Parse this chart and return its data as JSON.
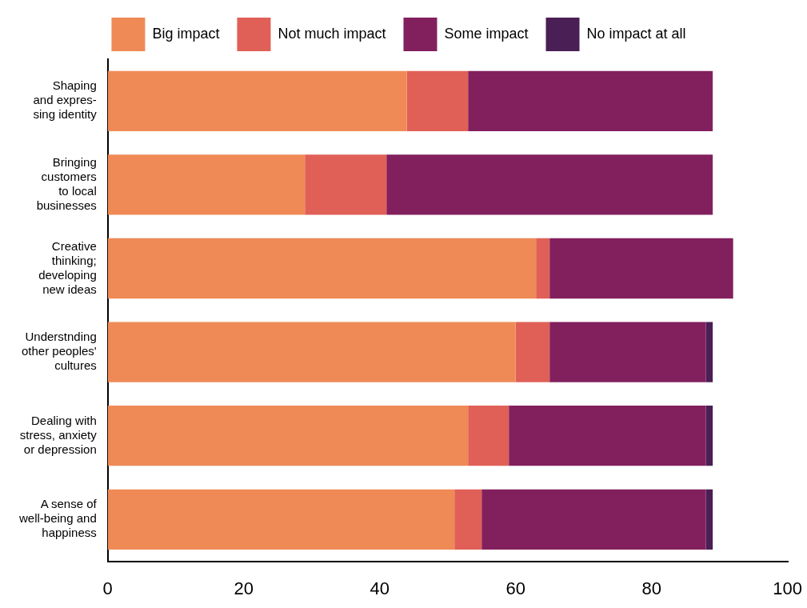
{
  "chart_data": {
    "type": "bar",
    "orientation": "horizontal",
    "stacked": true,
    "legend": "top",
    "grid": false,
    "categories": [
      "Shaping\nand expres-\nsing identity",
      "Bringing\ncustomers\nto local\nbusinesses",
      "Creative\nthinking;\ndeveloping\nnew ideas",
      "Understnding\nother peoples'\ncultures",
      "Dealing with\nstress, anxiety\nor depression",
      "A sense of\nwell-being and\nhappiness"
    ],
    "series": [
      {
        "name": "Big impact",
        "color": "#ef8a56",
        "values": [
          44,
          29,
          63,
          60,
          53,
          51
        ]
      },
      {
        "name": "Not much impact",
        "color": "#e06057",
        "values": [
          9,
          12,
          2,
          5,
          6,
          4
        ]
      },
      {
        "name": "Some impact",
        "color": "#82205e",
        "values": [
          36,
          48,
          27,
          23,
          29,
          33
        ]
      },
      {
        "name": "No impact at all",
        "color": "#4a1f55",
        "values": [
          0,
          0,
          0,
          1,
          1,
          1
        ]
      }
    ],
    "xlim": [
      0,
      100
    ],
    "xticks": [
      0,
      20,
      40,
      60,
      80,
      100
    ]
  }
}
